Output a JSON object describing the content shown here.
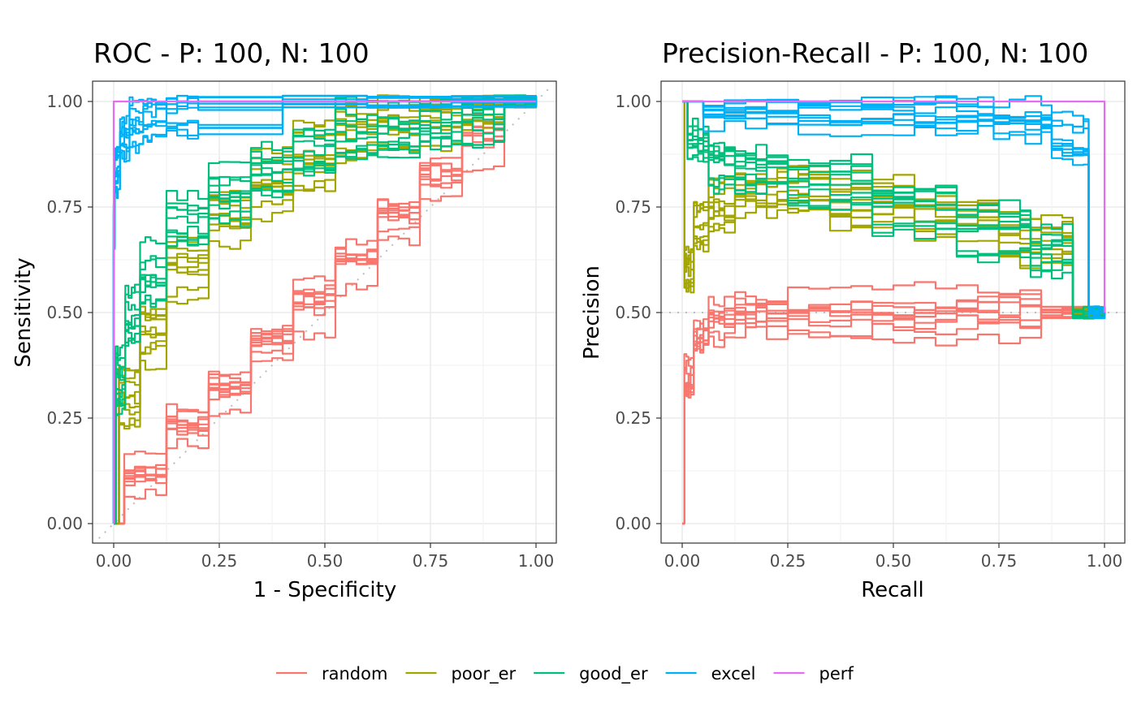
{
  "legend": {
    "items": [
      {
        "label": "random",
        "color": "#F8766D"
      },
      {
        "label": "poor_er",
        "color": "#A3A500"
      },
      {
        "label": "good_er",
        "color": "#00BF7D"
      },
      {
        "label": "excel",
        "color": "#00B0F6"
      },
      {
        "label": "perf",
        "color": "#E76BF3"
      }
    ]
  },
  "chart_data": [
    {
      "type": "line",
      "title": "ROC - P: 100, N: 100",
      "xlabel": "1 - Specificity",
      "ylabel": "Sensitivity",
      "xlim": [
        0,
        1
      ],
      "ylim": [
        0,
        1
      ],
      "xticks": [
        "0.00",
        "0.25",
        "0.50",
        "0.75",
        "1.00"
      ],
      "yticks": [
        "0.00",
        "0.25",
        "0.50",
        "0.75",
        "1.00"
      ],
      "grid": true,
      "reference_line": "diagonal",
      "series": [
        {
          "name": "random",
          "color": "#F8766D",
          "replicates": 10,
          "points": [
            [
              0,
              0
            ],
            [
              0.1,
              0.1
            ],
            [
              0.2,
              0.21
            ],
            [
              0.3,
              0.31
            ],
            [
              0.4,
              0.41
            ],
            [
              0.5,
              0.5
            ],
            [
              0.6,
              0.6
            ],
            [
              0.7,
              0.7
            ],
            [
              0.8,
              0.8
            ],
            [
              0.9,
              0.9
            ],
            [
              1,
              1
            ]
          ]
        },
        {
          "name": "poor_er",
          "color": "#A3A500",
          "replicates": 10,
          "points": [
            [
              0,
              0
            ],
            [
              0.05,
              0.3
            ],
            [
              0.1,
              0.45
            ],
            [
              0.2,
              0.6
            ],
            [
              0.3,
              0.72
            ],
            [
              0.4,
              0.8
            ],
            [
              0.5,
              0.87
            ],
            [
              0.6,
              0.92
            ],
            [
              0.7,
              0.95
            ],
            [
              0.8,
              0.97
            ],
            [
              0.9,
              0.99
            ],
            [
              1,
              1
            ]
          ]
        },
        {
          "name": "good_er",
          "color": "#00BF7D",
          "replicates": 10,
          "points": [
            [
              0,
              0
            ],
            [
              0.02,
              0.35
            ],
            [
              0.05,
              0.5
            ],
            [
              0.1,
              0.6
            ],
            [
              0.2,
              0.72
            ],
            [
              0.3,
              0.8
            ],
            [
              0.4,
              0.85
            ],
            [
              0.5,
              0.89
            ],
            [
              0.6,
              0.92
            ],
            [
              0.7,
              0.94
            ],
            [
              0.8,
              0.96
            ],
            [
              0.9,
              0.98
            ],
            [
              1,
              1
            ]
          ]
        },
        {
          "name": "excel",
          "color": "#00B0F6",
          "replicates": 10,
          "points": [
            [
              0,
              0
            ],
            [
              0,
              0.7
            ],
            [
              0.01,
              0.85
            ],
            [
              0.03,
              0.92
            ],
            [
              0.06,
              0.96
            ],
            [
              0.1,
              0.98
            ],
            [
              0.2,
              0.995
            ],
            [
              1,
              1
            ]
          ]
        },
        {
          "name": "perf",
          "color": "#E76BF3",
          "replicates": 1,
          "points": [
            [
              0,
              0
            ],
            [
              0,
              1
            ],
            [
              1,
              1
            ]
          ]
        }
      ]
    },
    {
      "type": "line",
      "title": "Precision-Recall - P: 100, N: 100",
      "xlabel": "Recall",
      "ylabel": "Precision",
      "xlim": [
        0,
        1
      ],
      "ylim": [
        0,
        1
      ],
      "xticks": [
        "0.00",
        "0.25",
        "0.50",
        "0.75",
        "1.00"
      ],
      "yticks": [
        "0.00",
        "0.25",
        "0.50",
        "0.75",
        "1.00"
      ],
      "grid": true,
      "reference_line": "horizontal at 0.5",
      "series": [
        {
          "name": "random",
          "color": "#F8766D",
          "replicates": 10,
          "points": [
            [
              0,
              0
            ],
            [
              0.02,
              0.35
            ],
            [
              0.05,
              0.45
            ],
            [
              0.1,
              0.48
            ],
            [
              0.2,
              0.5
            ],
            [
              0.4,
              0.49
            ],
            [
              0.6,
              0.5
            ],
            [
              0.8,
              0.51
            ],
            [
              1,
              0.5
            ]
          ]
        },
        {
          "name": "poor_er",
          "color": "#A3A500",
          "replicates": 10,
          "points": [
            [
              0,
              1
            ],
            [
              0.02,
              0.6
            ],
            [
              0.05,
              0.7
            ],
            [
              0.1,
              0.75
            ],
            [
              0.2,
              0.78
            ],
            [
              0.3,
              0.78
            ],
            [
              0.5,
              0.76
            ],
            [
              0.7,
              0.72
            ],
            [
              0.9,
              0.66
            ],
            [
              1,
              0.5
            ]
          ]
        },
        {
          "name": "good_er",
          "color": "#00BF7D",
          "replicates": 10,
          "points": [
            [
              0,
              1
            ],
            [
              0.05,
              0.9
            ],
            [
              0.1,
              0.85
            ],
            [
              0.2,
              0.83
            ],
            [
              0.4,
              0.8
            ],
            [
              0.6,
              0.75
            ],
            [
              0.8,
              0.7
            ],
            [
              0.9,
              0.64
            ],
            [
              1,
              0.5
            ]
          ]
        },
        {
          "name": "excel",
          "color": "#00B0F6",
          "replicates": 10,
          "points": [
            [
              0,
              1
            ],
            [
              0.2,
              0.98
            ],
            [
              0.5,
              0.98
            ],
            [
              0.7,
              0.97
            ],
            [
              0.85,
              0.95
            ],
            [
              0.95,
              0.9
            ],
            [
              1,
              0.5
            ]
          ]
        },
        {
          "name": "perf",
          "color": "#E76BF3",
          "replicates": 1,
          "points": [
            [
              0,
              1
            ],
            [
              1,
              1
            ],
            [
              1,
              0.5
            ]
          ]
        }
      ]
    }
  ]
}
